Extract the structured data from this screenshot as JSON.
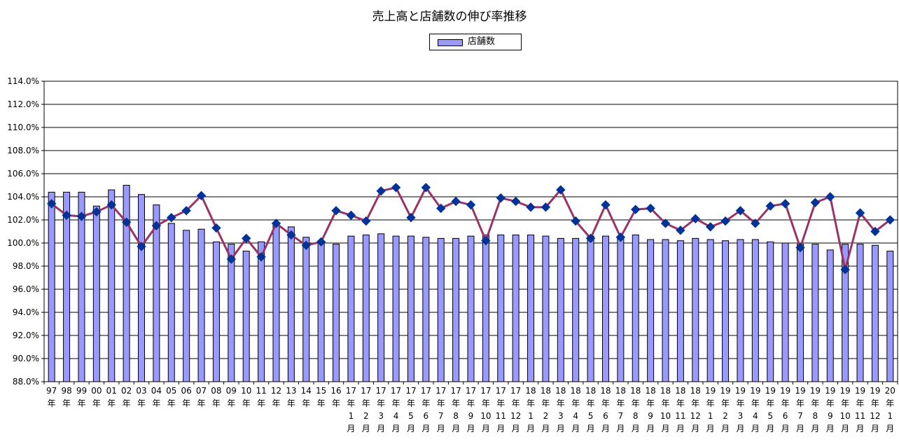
{
  "chart_data": {
    "type": "bar",
    "title": "売上高と店舗数の伸び率推移",
    "legend": {
      "placement": "top-center",
      "entries": [
        "店舗数"
      ]
    },
    "ylim": [
      88.0,
      114.0
    ],
    "yticks": [
      "114.0%",
      "112.0%",
      "110.0%",
      "108.0%",
      "106.0%",
      "104.0%",
      "102.0%",
      "100.0%",
      "98.0%",
      "96.0%",
      "94.0%",
      "92.0%",
      "90.0%",
      "88.0%"
    ],
    "grid": true,
    "categories": [
      [
        "97",
        "年"
      ],
      [
        "98",
        "年"
      ],
      [
        "99",
        "年"
      ],
      [
        "00",
        "年"
      ],
      [
        "01",
        "年"
      ],
      [
        "02",
        "年"
      ],
      [
        "03",
        "年"
      ],
      [
        "04",
        "年"
      ],
      [
        "05",
        "年"
      ],
      [
        "06",
        "年"
      ],
      [
        "07",
        "年"
      ],
      [
        "08",
        "年"
      ],
      [
        "09",
        "年"
      ],
      [
        "10",
        "年"
      ],
      [
        "11",
        "年"
      ],
      [
        "12",
        "年"
      ],
      [
        "13",
        "年"
      ],
      [
        "14",
        "年"
      ],
      [
        "15",
        "年"
      ],
      [
        "16",
        "年"
      ],
      [
        "17",
        "年",
        "1",
        "月"
      ],
      [
        "17",
        "年",
        "2",
        "月"
      ],
      [
        "17",
        "年",
        "3",
        "月"
      ],
      [
        "17",
        "年",
        "4",
        "月"
      ],
      [
        "17",
        "年",
        "5",
        "月"
      ],
      [
        "17",
        "年",
        "6",
        "月"
      ],
      [
        "17",
        "年",
        "7",
        "月"
      ],
      [
        "17",
        "年",
        "8",
        "月"
      ],
      [
        "17",
        "年",
        "9",
        "月"
      ],
      [
        "17",
        "年",
        "10",
        "月"
      ],
      [
        "17",
        "年",
        "11",
        "月"
      ],
      [
        "17",
        "年",
        "12",
        "月"
      ],
      [
        "18",
        "年",
        "1",
        "月"
      ],
      [
        "18",
        "年",
        "2",
        "月"
      ],
      [
        "18",
        "年",
        "3",
        "月"
      ],
      [
        "18",
        "年",
        "4",
        "月"
      ],
      [
        "18",
        "年",
        "5",
        "月"
      ],
      [
        "18",
        "年",
        "6",
        "月"
      ],
      [
        "18",
        "年",
        "7",
        "月"
      ],
      [
        "18",
        "年",
        "8",
        "月"
      ],
      [
        "18",
        "年",
        "9",
        "月"
      ],
      [
        "18",
        "年",
        "10",
        "月"
      ],
      [
        "18",
        "年",
        "11",
        "月"
      ],
      [
        "18",
        "年",
        "12",
        "月"
      ],
      [
        "19",
        "年",
        "1",
        "月"
      ],
      [
        "19",
        "年",
        "2",
        "月"
      ],
      [
        "19",
        "年",
        "3",
        "月"
      ],
      [
        "19",
        "年",
        "4",
        "月"
      ],
      [
        "19",
        "年",
        "5",
        "月"
      ],
      [
        "19",
        "年",
        "6",
        "月"
      ],
      [
        "19",
        "年",
        "7",
        "月"
      ],
      [
        "19",
        "年",
        "8",
        "月"
      ],
      [
        "19",
        "年",
        "9",
        "月"
      ],
      [
        "19",
        "年",
        "10",
        "月"
      ],
      [
        "19",
        "年",
        "11",
        "月"
      ],
      [
        "19",
        "年",
        "12",
        "月"
      ],
      [
        "20",
        "年",
        "1",
        "月"
      ]
    ],
    "series": [
      {
        "name": "店舗数",
        "type": "bar",
        "color": "#9999ff",
        "values": [
          104.4,
          104.4,
          104.4,
          103.2,
          104.6,
          105.0,
          104.2,
          103.3,
          101.7,
          101.1,
          101.2,
          100.1,
          99.9,
          99.3,
          100.1,
          101.7,
          101.4,
          100.5,
          100.1,
          99.9,
          100.6,
          100.7,
          100.8,
          100.6,
          100.6,
          100.5,
          100.4,
          100.4,
          100.6,
          100.7,
          100.7,
          100.7,
          100.7,
          100.6,
          100.4,
          100.4,
          100.6,
          100.6,
          100.6,
          100.7,
          100.3,
          100.3,
          100.2,
          100.4,
          100.3,
          100.2,
          100.3,
          100.3,
          100.1,
          100.0,
          99.9,
          99.9,
          99.4,
          99.9,
          99.9,
          99.8,
          99.3
        ]
      },
      {
        "type": "line",
        "color": "#993366",
        "marker_color": "#003399",
        "values": [
          103.4,
          102.4,
          102.3,
          102.7,
          103.3,
          101.8,
          99.7,
          101.5,
          102.2,
          102.8,
          104.1,
          101.3,
          98.6,
          100.4,
          98.8,
          101.7,
          100.7,
          99.8,
          100.1,
          102.8,
          102.4,
          101.9,
          104.5,
          104.8,
          102.2,
          104.8,
          103.0,
          103.6,
          103.3,
          100.2,
          103.9,
          103.6,
          103.1,
          103.1,
          104.6,
          101.9,
          100.4,
          103.3,
          100.5,
          102.9,
          103.0,
          101.7,
          101.1,
          102.1,
          101.4,
          101.9,
          102.8,
          101.7,
          103.2,
          103.4,
          99.6,
          103.5,
          104.0,
          97.7,
          102.6,
          101.0,
          102.0
        ]
      }
    ]
  }
}
